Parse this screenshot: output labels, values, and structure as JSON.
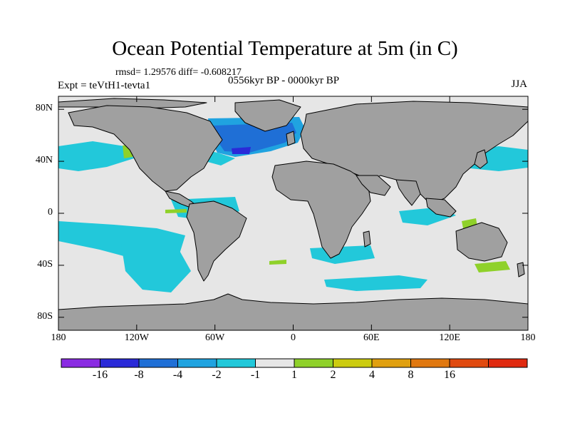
{
  "title": "Ocean Potential Temperature at 5m (in C)",
  "stats": "rmsd= 1.29576 diff= -0.608217",
  "period": "0556kyr BP - 0000kyr BP",
  "experiment": "Expt = teVtH1-tevta1",
  "season": "JJA",
  "map": {
    "projection": "cylindrical equidistant",
    "lon_range": [
      -180,
      180
    ],
    "lat_range": [
      -90,
      90
    ],
    "lat_ticks": [
      {
        "label": "80N",
        "lat": 80
      },
      {
        "label": "40N",
        "lat": 40
      },
      {
        "label": "0",
        "lat": 0
      },
      {
        "label": "40S",
        "lat": -40
      },
      {
        "label": "80S",
        "lat": -80
      }
    ],
    "lon_ticks": [
      {
        "label": "180",
        "lon": -180
      },
      {
        "label": "120W",
        "lon": -120
      },
      {
        "label": "60W",
        "lon": -60
      },
      {
        "label": "0",
        "lon": 0
      },
      {
        "label": "60E",
        "lon": 60
      },
      {
        "label": "120E",
        "lon": 120
      },
      {
        "label": "180",
        "lon": 180
      }
    ]
  },
  "colorbar": {
    "bins": [
      {
        "color": "#8a2be2"
      },
      {
        "color": "#2a2ad8"
      },
      {
        "color": "#1f6fd6"
      },
      {
        "color": "#20a3e0"
      },
      {
        "color": "#22c8da"
      },
      {
        "color": "#e6e6e6"
      },
      {
        "color": "#8fd12a"
      },
      {
        "color": "#cccc10"
      },
      {
        "color": "#e0a010"
      },
      {
        "color": "#e07810"
      },
      {
        "color": "#e04a10"
      },
      {
        "color": "#e02a10"
      }
    ],
    "labels": [
      "-16",
      "-8",
      "-4",
      "-2",
      "-1",
      "1",
      "2",
      "4",
      "8",
      "16"
    ]
  },
  "colors": {
    "land": "#a0a0a0",
    "ocean_neutral": "#e6e6e6",
    "coast": "#000000"
  }
}
